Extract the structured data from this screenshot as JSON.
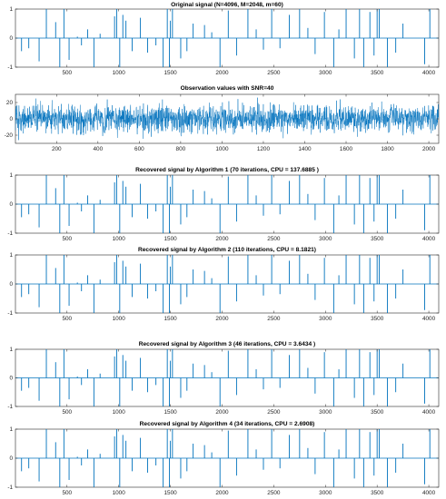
{
  "colors": {
    "signal": "#0072BD",
    "axes": "#262626",
    "background": "#ffffff"
  },
  "chart_data": [
    {
      "type": "line",
      "style": "stem",
      "title": "Original signal (N=4096, M=2048, m=60)",
      "xlim": [
        1,
        4096
      ],
      "ylim": [
        -1,
        1
      ],
      "xticks": [
        500,
        1000,
        1500,
        2000,
        2500,
        3000,
        3500,
        4000
      ],
      "yticks": [
        -1,
        0,
        1
      ],
      "xlabel": "",
      "ylabel": "",
      "grid": false,
      "spikes": {
        "x": [
          60,
          130,
          230,
          300,
          390,
          430,
          470,
          520,
          600,
          640,
          700,
          760,
          820,
          960,
          980,
          1010,
          1040,
          1070,
          1130,
          1210,
          1280,
          1360,
          1430,
          1470,
          1490,
          1500,
          1520,
          1600,
          1660,
          1720,
          1830,
          1900,
          1980,
          2060,
          2140,
          2250,
          2330,
          2400,
          2480,
          2560,
          2650,
          2750,
          2830,
          2900,
          2990,
          3080,
          3130,
          3200,
          3280,
          3330,
          3370,
          3430,
          3470,
          3500,
          3520,
          3600,
          3680,
          3750,
          3960,
          4010
        ],
        "y": [
          -0.45,
          -0.35,
          -0.8,
          1,
          0.55,
          -1,
          1,
          -0.75,
          0.05,
          -0.25,
          0.3,
          -1,
          0.15,
          0.75,
          1,
          -1,
          0.8,
          0.6,
          -0.45,
          0.7,
          -0.5,
          -0.25,
          -1,
          1,
          -1,
          0.6,
          1,
          -0.7,
          -0.45,
          0.5,
          0.45,
          0.2,
          -1,
          0.95,
          -0.6,
          1,
          0.3,
          -0.4,
          1,
          -0.35,
          0.8,
          1,
          0.35,
          -0.55,
          0.9,
          -1,
          0.3,
          1,
          -0.7,
          1,
          -1,
          0.9,
          -0.6,
          1,
          1,
          -1,
          -0.5,
          0.5,
          -0.9,
          1
        ]
      }
    },
    {
      "type": "line",
      "title": "Observation values with SNR=40",
      "xlim": [
        1,
        2048
      ],
      "ylim": [
        -30,
        30
      ],
      "xticks": [
        200,
        400,
        600,
        800,
        1000,
        1200,
        1400,
        1600,
        1800,
        2000
      ],
      "yticks": [
        -20,
        0,
        20
      ],
      "xlabel": "",
      "ylabel": "",
      "grid": false,
      "noise": {
        "n": 2048,
        "amplitude_rms": 8.5,
        "peak": 26
      }
    },
    {
      "type": "line",
      "style": "stem",
      "title": "Recovered signal by Algorithm 1 (70 iterations, CPU = 137.6885 )",
      "xlim": [
        1,
        4096
      ],
      "ylim": [
        -1,
        1
      ],
      "xticks": [
        500,
        1000,
        1500,
        2000,
        2500,
        3000,
        3500,
        4000
      ],
      "yticks": [
        -1,
        0,
        1
      ],
      "xlabel": "",
      "ylabel": "",
      "grid": false,
      "spikes_ref": 0
    },
    {
      "type": "line",
      "style": "stem",
      "title": "Recovered signal by Algorithm 2 (110 iterations, CPU = 8.1821)",
      "xlim": [
        1,
        4096
      ],
      "ylim": [
        -1,
        1
      ],
      "xticks": [
        500,
        1000,
        1500,
        2000,
        2500,
        3000,
        3500,
        4000
      ],
      "yticks": [
        -1,
        0,
        1
      ],
      "xlabel": "",
      "ylabel": "",
      "grid": false,
      "spikes_ref": 0
    },
    {
      "type": "line",
      "style": "stem",
      "title": "Recovered signal by Algorithm 3 (46 iterations, CPU = 3.6434 )",
      "xlim": [
        1,
        4096
      ],
      "ylim": [
        -1,
        1
      ],
      "xticks": [
        500,
        1000,
        1500,
        2000,
        2500,
        3000,
        3500,
        4000
      ],
      "yticks": [
        -1,
        0,
        1
      ],
      "xlabel": "",
      "ylabel": "",
      "grid": false,
      "spikes_ref": 0
    },
    {
      "type": "line",
      "style": "stem",
      "title": "Recovered signal by Algorithm 4 (34 iterations, CPU = 2.6908)",
      "xlim": [
        1,
        4096
      ],
      "ylim": [
        -1,
        1
      ],
      "xticks": [
        500,
        1000,
        1500,
        2000,
        2500,
        3000,
        3500,
        4000
      ],
      "yticks": [
        -1,
        0,
        1
      ],
      "xlabel": "",
      "ylabel": "",
      "grid": false,
      "spikes_ref": 0
    }
  ]
}
